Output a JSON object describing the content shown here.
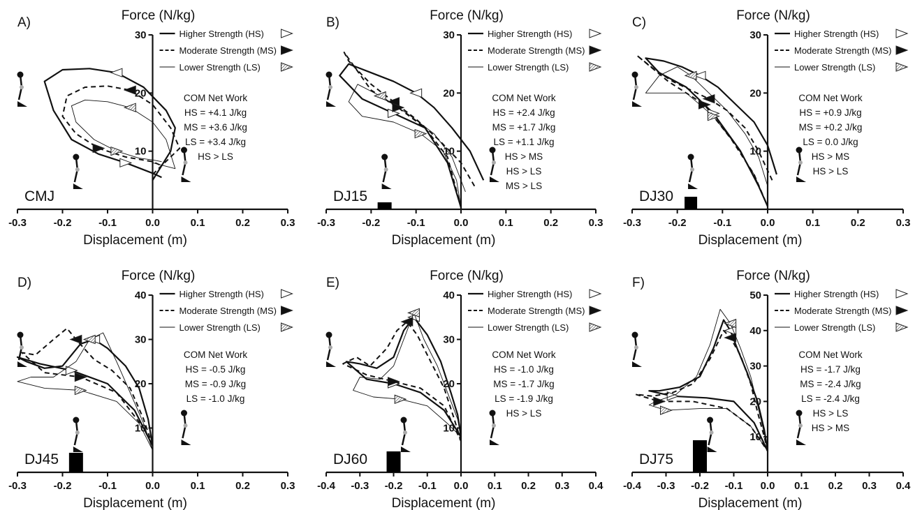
{
  "figure": {
    "panels": [
      {
        "id": "A",
        "label": "A)",
        "trial": "CMJ",
        "ylabel": "Force (N/kg)",
        "xlabel": "Displacement (m)",
        "xlim": [
          -0.3,
          0.3
        ],
        "xticks": [
          "-0.3",
          "-0.2",
          "-0.1",
          "0.0",
          "0.1",
          "0.2",
          "0.3"
        ],
        "ylim": [
          0,
          30
        ],
        "yticks": [
          "10",
          "20",
          "30"
        ],
        "box": 0,
        "legend": [
          "Higher Strength (HS)",
          "Moderate Strength (MS)",
          "Lower Strength (LS)"
        ],
        "work_title": "COM Net Work",
        "work_lines": [
          "HS = +4.1 J/kg",
          "MS = +3.6 J/kg",
          "LS = +3.4 J/kg",
          "HS > LS"
        ],
        "series": [
          {
            "name": "HS",
            "x": [
              0.0,
              0.04,
              0.05,
              0.03,
              -0.02,
              -0.08,
              -0.14,
              -0.2,
              -0.24,
              -0.22,
              -0.18,
              -0.12,
              -0.06,
              -0.02,
              0.0,
              0.02
            ],
            "y": [
              5,
              10,
              14,
              17,
              21,
              23.5,
              24.2,
              24,
              22,
              17,
              12,
              9.5,
              8,
              6.8,
              6.2,
              5.5
            ]
          },
          {
            "name": "MS",
            "x": [
              0.0,
              0.06,
              0.04,
              0.0,
              -0.05,
              -0.1,
              -0.15,
              -0.19,
              -0.2,
              -0.17,
              -0.12,
              -0.06,
              0.0,
              0.02
            ],
            "y": [
              6,
              10.5,
              14,
              18,
              20.5,
              21.2,
              21,
              19.5,
              16,
              13,
              10.5,
              9,
              8.2,
              7.5
            ]
          },
          {
            "name": "LS",
            "x": [
              0.0,
              0.05,
              0.03,
              0.0,
              -0.05,
              -0.1,
              -0.15,
              -0.18,
              -0.17,
              -0.13,
              -0.08,
              -0.03,
              0.0,
              0.02
            ],
            "y": [
              8,
              7,
              12,
              15,
              17.5,
              18.5,
              18.8,
              17.8,
              15,
              12,
              10,
              8.8,
              8.5,
              8.2
            ]
          }
        ]
      },
      {
        "id": "B",
        "label": "B)",
        "trial": "DJ15",
        "ylabel": "Force (N/kg)",
        "xlabel": "Displacement (m)",
        "xlim": [
          -0.3,
          0.3
        ],
        "xticks": [
          "-0.3",
          "-0.2",
          "-0.1",
          "0.0",
          "0.1",
          "0.2",
          "0.3"
        ],
        "ylim": [
          0,
          30
        ],
        "yticks": [
          "10",
          "20",
          "30"
        ],
        "box": 1,
        "legend": [
          "Higher Strength (HS)",
          "Moderate Strength (MS)",
          "Lower Strength (LS)"
        ],
        "work_title": "COM Net Work",
        "work_lines": [
          "HS = +2.4 J/kg",
          "MS = +1.7 J/kg",
          "LS = +1.1 J/kg",
          "HS > MS",
          "HS > LS",
          "MS > LS"
        ],
        "series": [
          {
            "name": "HS",
            "x": [
              0.05,
              0.02,
              -0.02,
              -0.06,
              -0.1,
              -0.15,
              -0.2,
              -0.25,
              -0.27,
              -0.22,
              -0.15,
              -0.08,
              -0.03,
              0.0
            ],
            "y": [
              5,
              10,
              14,
              17.5,
              20,
              22,
              23.5,
              25,
              23,
              19,
              16.5,
              14,
              8,
              0.3
            ]
          },
          {
            "name": "MS",
            "x": [
              0.03,
              0.0,
              -0.05,
              -0.1,
              -0.15,
              -0.2,
              -0.25,
              -0.26,
              -0.2,
              -0.14,
              -0.08,
              -0.03,
              0.0
            ],
            "y": [
              4,
              8,
              12,
              15.5,
              18.5,
              21.5,
              25.5,
              27,
              20.5,
              17.5,
              14,
              9,
              0.3
            ]
          },
          {
            "name": "LS",
            "x": [
              0.01,
              -0.02,
              -0.06,
              -0.12,
              -0.18,
              -0.23,
              -0.25,
              -0.22,
              -0.15,
              -0.09,
              -0.04,
              -0.01,
              0.0
            ],
            "y": [
              3,
              9,
              13,
              16.5,
              19.5,
              21.5,
              18.5,
              16,
              15,
              13,
              10,
              5,
              0.3
            ]
          }
        ]
      },
      {
        "id": "C",
        "label": "C)",
        "trial": "DJ30",
        "ylabel": "Force (N/kg)",
        "xlabel": "Displacement (m)",
        "xlim": [
          -0.3,
          0.3
        ],
        "xticks": [
          "-0.3",
          "-0.2",
          "-0.1",
          "0.0",
          "0.1",
          "0.2",
          "0.3"
        ],
        "ylim": [
          0,
          30
        ],
        "yticks": [
          "10",
          "20",
          "30"
        ],
        "box": 2,
        "legend": [
          "Higher Strength (HS)",
          "Moderate Strength (MS)",
          "Lower Strength (LS)"
        ],
        "work_title": "COM Net Work",
        "work_lines": [
          "HS = +0.9 J/kg",
          "MS = +0.2 J/kg",
          "LS = 0.0 J/kg",
          "HS > MS",
          "HS > LS"
        ],
        "series": [
          {
            "name": "HS",
            "x": [
              0.02,
              0.0,
              -0.03,
              -0.07,
              -0.11,
              -0.15,
              -0.19,
              -0.23,
              -0.27,
              -0.24,
              -0.18,
              -0.12,
              -0.06,
              -0.02,
              0.0
            ],
            "y": [
              6,
              11,
              15,
              18,
              21,
              23,
              24.5,
              25.5,
              26,
              23.5,
              21,
              16.5,
              10,
              4,
              0.5
            ]
          },
          {
            "name": "MS",
            "x": [
              0.01,
              -0.02,
              -0.05,
              -0.09,
              -0.13,
              -0.17,
              -0.21,
              -0.25,
              -0.29,
              -0.22,
              -0.14,
              -0.08,
              -0.03,
              0.0
            ],
            "y": [
              5,
              10,
              14,
              17,
              19,
              20.5,
              22,
              24,
              26.5,
              22,
              18,
              12,
              6,
              0.5
            ]
          },
          {
            "name": "LS",
            "x": [
              0.0,
              -0.02,
              -0.05,
              -0.09,
              -0.13,
              -0.17,
              -0.2,
              -0.24,
              -0.27,
              -0.24,
              -0.18,
              -0.12,
              -0.07,
              -0.03,
              0.0
            ],
            "y": [
              4,
              9,
              13,
              17,
              20,
              23,
              24.5,
              23,
              20,
              20,
              20,
              16,
              11,
              6,
              0.5
            ]
          }
        ]
      },
      {
        "id": "D",
        "label": "D)",
        "trial": "DJ45",
        "ylabel": "Force (N/kg)",
        "xlabel": "Displacement (m)",
        "xlim": [
          -0.3,
          0.3
        ],
        "xticks": [
          "-0.3",
          "-0.2",
          "-0.1",
          "0.0",
          "0.1",
          "0.2",
          "0.3"
        ],
        "ylim": [
          0,
          40
        ],
        "yticks": [
          "10",
          "20",
          "30",
          "40"
        ],
        "box": 3,
        "legend": [
          "Higher Strength (HS)",
          "Moderate Strength (MS)",
          "Lower Strength (LS)"
        ],
        "work_title": "COM Net Work",
        "work_lines": [
          "HS = -0.5 J/kg",
          "MS = -0.9 J/kg",
          "LS = -1.0 J/kg"
        ],
        "series": [
          {
            "name": "HS",
            "x": [
              0.0,
              -0.01,
              -0.03,
              -0.06,
              -0.1,
              -0.13,
              -0.16,
              -0.2,
              -0.24,
              -0.28,
              -0.3,
              -0.25,
              -0.18,
              -0.1,
              -0.04,
              0.0
            ],
            "y": [
              6,
              12,
              19,
              24,
              28,
              30,
              29,
              24,
              23.5,
              25,
              26,
              24.5,
              23,
              20,
              14,
              6
            ]
          },
          {
            "name": "MS",
            "x": [
              0.0,
              -0.02,
              -0.05,
              -0.09,
              -0.13,
              -0.17,
              -0.19,
              -0.22,
              -0.26,
              -0.29,
              -0.24,
              -0.16,
              -0.08,
              -0.02,
              0.0
            ],
            "y": [
              6,
              12,
              19,
              23,
              25.5,
              30,
              32.5,
              30,
              26.5,
              27,
              22.5,
              21.5,
              18,
              10,
              6
            ]
          },
          {
            "name": "LS",
            "x": [
              0.0,
              -0.02,
              -0.05,
              -0.08,
              -0.11,
              -0.14,
              -0.17,
              -0.22,
              -0.27,
              -0.3,
              -0.24,
              -0.16,
              -0.08,
              -0.03,
              0.0
            ],
            "y": [
              5,
              11,
              18,
              25,
              31.5,
              30,
              25,
              21.5,
              21.5,
              20.5,
              19,
              18.5,
              16,
              11,
              5
            ]
          }
        ]
      },
      {
        "id": "E",
        "label": "E)",
        "trial": "DJ60",
        "ylabel": "Force (N/kg)",
        "xlabel": "Displacement (m)",
        "xlim": [
          -0.4,
          0.4
        ],
        "xticks": [
          "-0.4",
          "-0.3",
          "-0.2",
          "-0.1",
          "0.0",
          "0.1",
          "0.2",
          "0.3",
          "0.4"
        ],
        "ylim": [
          0,
          40
        ],
        "yticks": [
          "10",
          "20",
          "30",
          "40"
        ],
        "box": 4,
        "legend": [
          "Higher Strength (HS)",
          "Moderate Strength (MS)",
          "Lower Strength (LS)"
        ],
        "work_title": "COM Net Work",
        "work_lines": [
          "HS = -1.0 J/kg",
          "MS = -1.7 J/kg",
          "LS = -1.9 J/kg",
          "HS > LS"
        ],
        "series": [
          {
            "name": "HS",
            "x": [
              0.0,
              -0.01,
              -0.03,
              -0.06,
              -0.1,
              -0.14,
              -0.17,
              -0.2,
              -0.25,
              -0.3,
              -0.34,
              -0.28,
              -0.2,
              -0.12,
              -0.05,
              0.0
            ],
            "y": [
              8,
              13,
              18,
              25,
              31,
              35,
              32,
              26,
              23.5,
              24.5,
              25,
              21,
              20,
              18,
              14,
              8
            ]
          },
          {
            "name": "MS",
            "x": [
              0.0,
              -0.02,
              -0.05,
              -0.09,
              -0.13,
              -0.16,
              -0.19,
              -0.22,
              -0.27,
              -0.31,
              -0.35,
              -0.28,
              -0.2,
              -0.12,
              -0.05,
              0.0
            ],
            "y": [
              7,
              12,
              19,
              25,
              31,
              34,
              32,
              28,
              24,
              26,
              24.5,
              22,
              20.5,
              19,
              15,
              7
            ]
          },
          {
            "name": "LS",
            "x": [
              0.0,
              -0.01,
              -0.04,
              -0.07,
              -0.11,
              -0.14,
              -0.17,
              -0.2,
              -0.24,
              -0.3,
              -0.32,
              -0.26,
              -0.18,
              -0.1,
              -0.04,
              0.0
            ],
            "y": [
              8,
              12,
              18,
              24,
              30,
              36,
              30,
              24,
              21,
              21.5,
              18.5,
              17,
              16.5,
              15,
              11,
              8
            ]
          }
        ]
      },
      {
        "id": "F",
        "label": "F)",
        "trial": "DJ75",
        "ylabel": "Force (N/kg)",
        "xlabel": "Displacement (m)",
        "xlim": [
          -0.4,
          0.4
        ],
        "xticks": [
          "-0.4",
          "-0.3",
          "-0.2",
          "-0.1",
          "0.0",
          "0.1",
          "0.2",
          "0.3",
          "0.4"
        ],
        "ylim": [
          0,
          50
        ],
        "yticks": [
          "10",
          "20",
          "30",
          "40",
          "50"
        ],
        "box": 5,
        "legend": [
          "Higher Strength (HS)",
          "Moderate Strength (MS)",
          "Lower Strength (LS)"
        ],
        "work_title": "COM Net Work",
        "work_lines": [
          "HS = -1.7 J/kg",
          "MS = -2.4 J/kg",
          "LS = -2.4 J/kg",
          "HS > LS",
          "HS > MS"
        ],
        "series": [
          {
            "name": "HS",
            "x": [
              0.0,
              -0.01,
              -0.03,
              -0.06,
              -0.09,
              -0.11,
              -0.13,
              -0.16,
              -0.2,
              -0.26,
              -0.32,
              -0.35,
              -0.28,
              -0.18,
              -0.1,
              -0.04,
              0.0
            ],
            "y": [
              6,
              12,
              20,
              28,
              35,
              40,
              43,
              35,
              27,
              24,
              23,
              23,
              21.5,
              21,
              20,
              14,
              6
            ]
          },
          {
            "name": "MS",
            "x": [
              0.0,
              -0.01,
              -0.03,
              -0.05,
              -0.08,
              -0.11,
              -0.13,
              -0.17,
              -0.22,
              -0.28,
              -0.34,
              -0.39,
              -0.32,
              -0.22,
              -0.12,
              -0.05,
              0.0
            ],
            "y": [
              6,
              10,
              17,
              25,
              33,
              38,
              40,
              32,
              25,
              22.5,
              21.5,
              22,
              20,
              20,
              18,
              13,
              6
            ]
          },
          {
            "name": "LS",
            "x": [
              0.0,
              -0.01,
              -0.03,
              -0.05,
              -0.08,
              -0.11,
              -0.14,
              -0.17,
              -0.21,
              -0.27,
              -0.33,
              -0.35,
              -0.3,
              -0.2,
              -0.12,
              -0.05,
              0.0
            ],
            "y": [
              6,
              11,
              19,
              27,
              35,
              42,
              46,
              36,
              27,
              22,
              20,
              19,
              17.5,
              18,
              18,
              13,
              6
            ]
          }
        ]
      }
    ]
  },
  "colors": {
    "line": "#111111",
    "hatch": "#777777",
    "stick_joint": "#aaaaaa"
  }
}
